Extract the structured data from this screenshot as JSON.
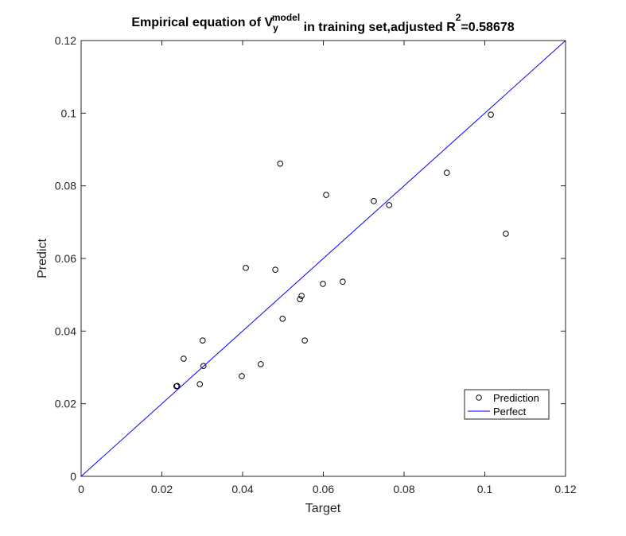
{
  "chart_data": {
    "type": "scatter",
    "title": [
      {
        "text": "Empirical equation of V",
        "shift": null
      },
      {
        "text": "y",
        "shift": "sub"
      },
      {
        "text": "model",
        "shift": "sup"
      },
      {
        "text": " in training set,adjusted R",
        "shift": null
      },
      {
        "text": "2",
        "shift": "sup"
      },
      {
        "text": "=0.58678",
        "shift": null
      }
    ],
    "xlabel": "Target",
    "ylabel": "Predict",
    "xlim": [
      0,
      0.12
    ],
    "ylim": [
      0,
      0.12
    ],
    "xticks": [
      0,
      0.02,
      0.04,
      0.06,
      0.08,
      0.1,
      0.12
    ],
    "yticks": [
      0,
      0.02,
      0.04,
      0.06,
      0.08,
      0.1,
      0.12
    ],
    "grid": false,
    "legend": "lower right",
    "series": [
      {
        "name": "Prediction",
        "type": "scatter",
        "color": "#000000",
        "x": [
          0.0236,
          0.0238,
          0.0254,
          0.0301,
          0.0303,
          0.0294,
          0.0398,
          0.0408,
          0.0445,
          0.0481,
          0.0493,
          0.0499,
          0.0542,
          0.0546,
          0.0554,
          0.0599,
          0.0607,
          0.0648,
          0.0725,
          0.0763,
          0.0906,
          0.1015,
          0.1052
        ],
        "values": [
          0.0248,
          0.0249,
          0.0324,
          0.0374,
          0.0304,
          0.0254,
          0.0276,
          0.0574,
          0.0309,
          0.0569,
          0.0861,
          0.0434,
          0.0488,
          0.0497,
          0.0374,
          0.053,
          0.0775,
          0.0536,
          0.0758,
          0.0747,
          0.0836,
          0.0996,
          0.0668
        ]
      },
      {
        "name": "Perfect",
        "type": "line",
        "color": "#0000ff",
        "x": [
          0,
          0.12
        ],
        "values": [
          0,
          0.12
        ]
      }
    ]
  }
}
